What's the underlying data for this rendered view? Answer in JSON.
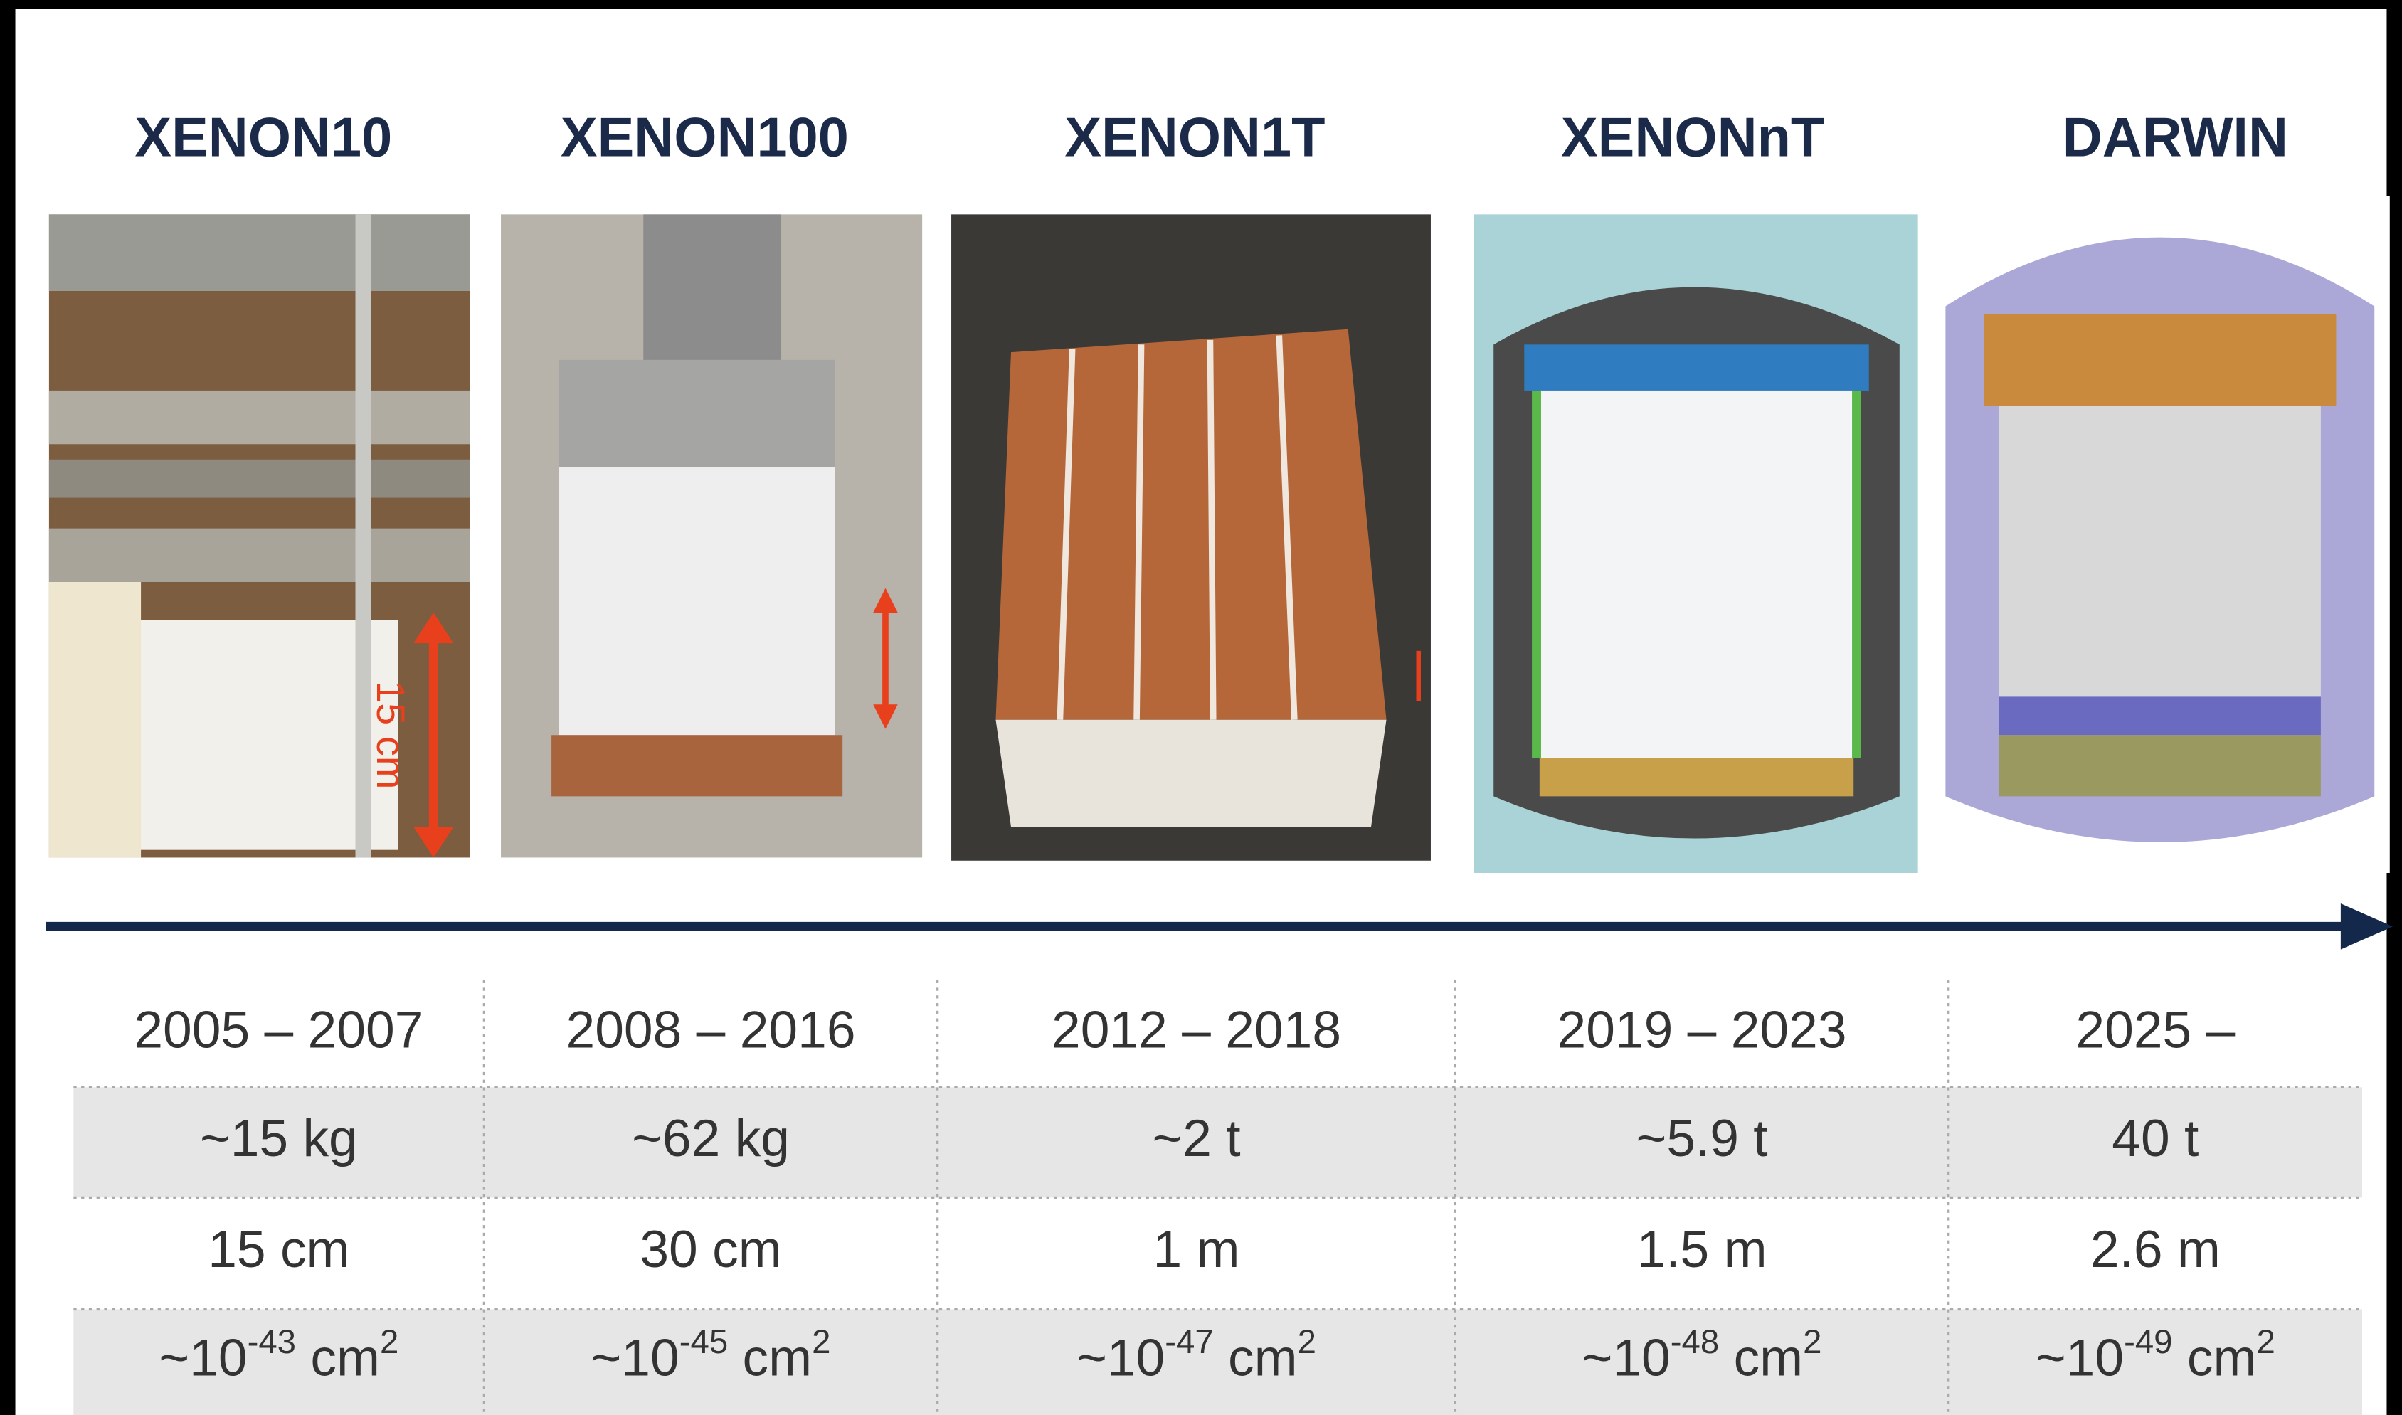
{
  "header": {
    "columns": [
      "XENON10",
      "XENON100",
      "XENON1T",
      "XENONnT",
      "DARWIN"
    ]
  },
  "image_label": "15 cm",
  "table": {
    "rows": [
      [
        "2005 – 2007",
        "2008 – 2016",
        "2012 – 2018",
        "2019 – 2023",
        "2025 –"
      ],
      [
        "~15 kg",
        "~62 kg",
        "~2 t",
        "~5.9 t",
        "40 t"
      ],
      [
        "15 cm",
        "30 cm",
        "1 m",
        "1.5 m",
        "2.6 m"
      ],
      [
        {
          "base": "~10",
          "exp": "-43",
          "unit": " cm",
          "unit_exp": "2"
        },
        {
          "base": "~10",
          "exp": "-45",
          "unit": " cm",
          "unit_exp": "2"
        },
        {
          "base": "~10",
          "exp": "-47",
          "unit": " cm",
          "unit_exp": "2"
        },
        {
          "base": "~10",
          "exp": "-48",
          "unit": " cm",
          "unit_exp": "2"
        },
        {
          "base": "~10",
          "exp": "-49",
          "unit": " cm",
          "unit_exp": "2"
        }
      ]
    ]
  }
}
